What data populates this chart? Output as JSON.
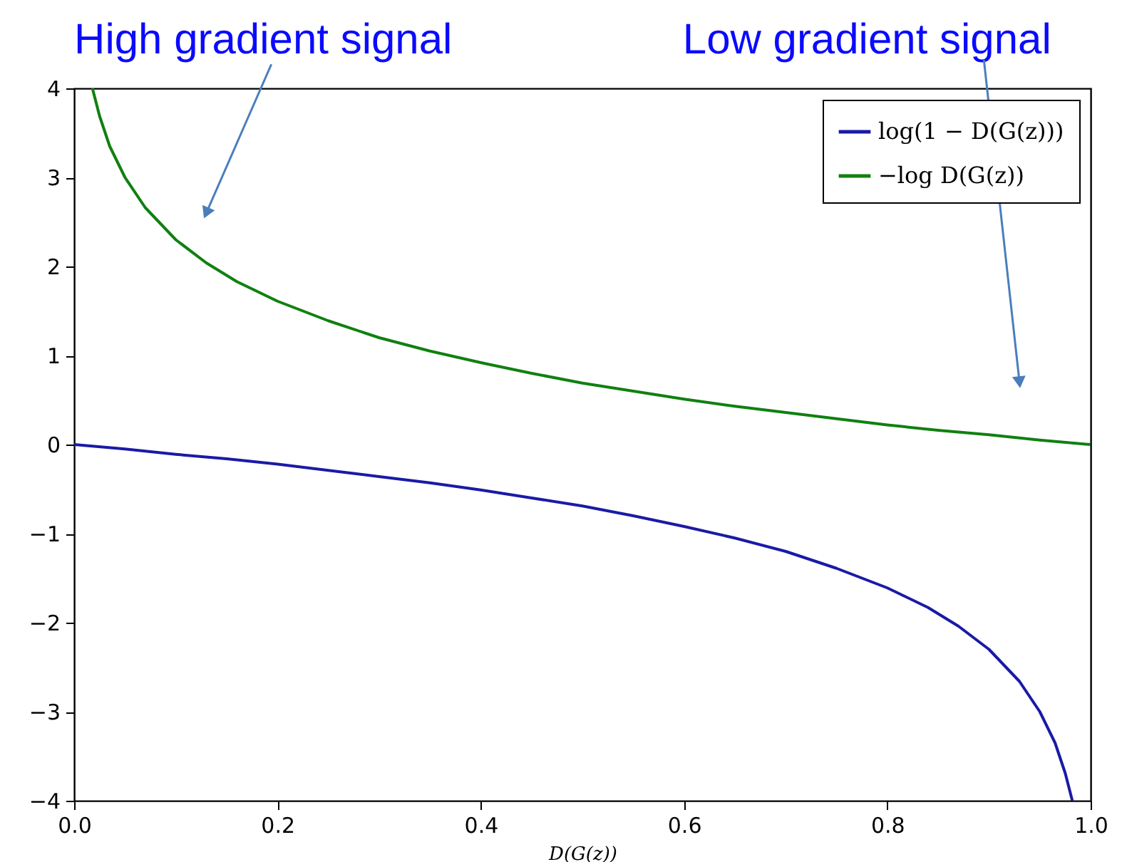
{
  "chart_data": {
    "type": "line",
    "xlabel": "D(G(z))",
    "series": [
      {
        "name": "log(1 − D(G(z)))",
        "color": "#1a1aa6",
        "x": [
          0,
          0.05,
          0.1,
          0.15,
          0.2,
          0.25,
          0.3,
          0.35,
          0.4,
          0.45,
          0.5,
          0.55,
          0.6,
          0.65,
          0.7,
          0.75,
          0.8,
          0.84,
          0.87,
          0.9,
          0.93,
          0.95,
          0.965,
          0.975,
          0.982
        ],
        "values": [
          0,
          -0.05,
          -0.11,
          -0.16,
          -0.22,
          -0.29,
          -0.36,
          -0.43,
          -0.51,
          -0.6,
          -0.69,
          -0.8,
          -0.92,
          -1.05,
          -1.2,
          -1.39,
          -1.61,
          -1.83,
          -2.04,
          -2.3,
          -2.66,
          -3.0,
          -3.35,
          -3.69,
          -4
        ]
      },
      {
        "name": "−log D(G(z))",
        "color": "#108010",
        "x": [
          0.018,
          0.025,
          0.035,
          0.05,
          0.07,
          0.1,
          0.13,
          0.16,
          0.2,
          0.25,
          0.3,
          0.35,
          0.4,
          0.45,
          0.5,
          0.55,
          0.6,
          0.65,
          0.7,
          0.75,
          0.8,
          0.85,
          0.9,
          0.95,
          1.0
        ],
        "values": [
          4,
          3.69,
          3.35,
          3.0,
          2.66,
          2.3,
          2.04,
          1.83,
          1.61,
          1.39,
          1.2,
          1.05,
          0.92,
          0.8,
          0.69,
          0.6,
          0.51,
          0.43,
          0.36,
          0.29,
          0.22,
          0.16,
          0.11,
          0.05,
          0
        ]
      }
    ],
    "xlim": [
      0,
      1
    ],
    "xticks": [
      {
        "value": 0,
        "label": "0.0"
      },
      {
        "value": 0.2,
        "label": "0.2"
      },
      {
        "value": 0.4,
        "label": "0.4"
      },
      {
        "value": 0.6,
        "label": "0.6"
      },
      {
        "value": 0.8,
        "label": "0.8"
      },
      {
        "value": 1,
        "label": "1.0"
      }
    ],
    "ylim": [
      -4,
      4
    ],
    "yticks": [
      -4,
      -3,
      -2,
      -1,
      0,
      1,
      2,
      3,
      4
    ],
    "legend": "top right",
    "grid": false,
    "annotations": [
      {
        "text": "High gradient signal",
        "x": 0.13,
        "y": 2.6
      },
      {
        "text": "Low gradient signal",
        "x": 0.93,
        "y": 0.7
      }
    ]
  }
}
